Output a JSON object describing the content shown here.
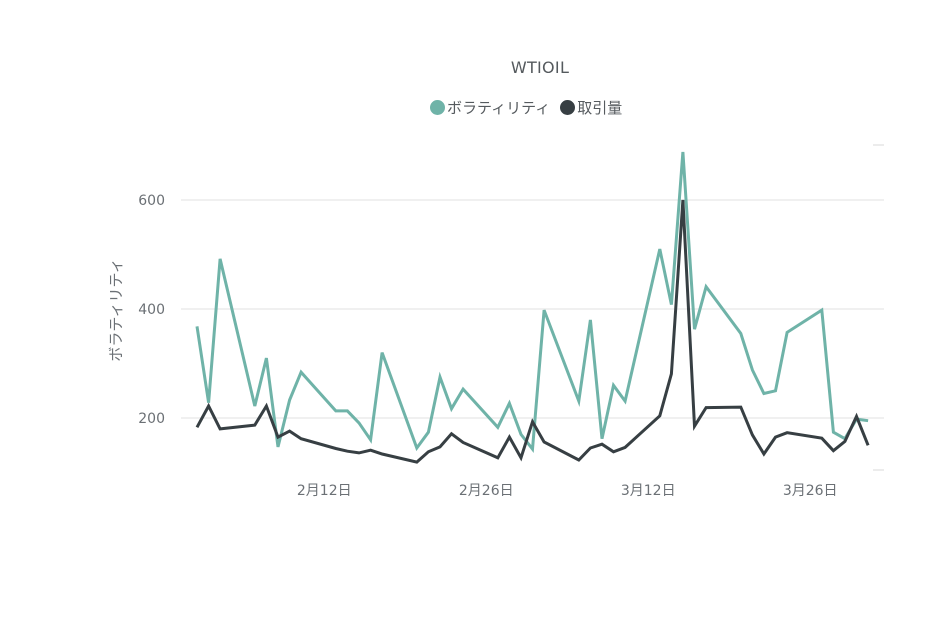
{
  "chart_data": {
    "type": "line",
    "title": "WTIOIL",
    "xlabel": "",
    "ylabel": "ボラティリティ",
    "ylim": [
      100,
      700
    ],
    "y_ticks": [
      200,
      400,
      600
    ],
    "x_ticks": [
      {
        "day": 11,
        "label": "2月12日"
      },
      {
        "day": 25,
        "label": "2月26日"
      },
      {
        "day": 39,
        "label": "3月12日"
      },
      {
        "day": 53,
        "label": "3月26日"
      }
    ],
    "grid": true,
    "legend_position": "top",
    "secondary_axis": {
      "labels_visible": false
    },
    "series": [
      {
        "name": "ボラティリティ",
        "color": "#6fb3a8",
        "axis": "primary",
        "x_day": [
          0,
          1,
          2,
          5,
          6,
          7,
          8,
          9,
          12,
          13,
          14,
          15,
          16,
          19,
          20,
          21,
          22,
          23,
          26,
          27,
          28,
          29,
          30,
          33,
          34,
          35,
          36,
          37,
          40,
          41,
          42,
          43,
          44,
          47,
          48,
          49,
          50,
          51,
          54,
          55,
          56,
          57,
          58
        ],
        "values": [
          368,
          228,
          492,
          222,
          310,
          147,
          233,
          284,
          213,
          213,
          191,
          160,
          320,
          145,
          174,
          275,
          217,
          253,
          183,
          227,
          170,
          143,
          398,
          231,
          380,
          162,
          260,
          231,
          510,
          408,
          688,
          363,
          441,
          355,
          288,
          245,
          250,
          357,
          398,
          174,
          162,
          198,
          195
        ]
      },
      {
        "name": "取引量",
        "color": "#373f43",
        "axis": "secondary",
        "x_day": [
          0,
          1,
          2,
          5,
          6,
          7,
          8,
          9,
          12,
          13,
          14,
          15,
          16,
          19,
          20,
          21,
          22,
          23,
          26,
          27,
          28,
          29,
          30,
          33,
          34,
          35,
          36,
          37,
          40,
          41,
          42,
          43,
          44,
          47,
          48,
          49,
          50,
          51,
          54,
          55,
          56,
          57,
          58
        ],
        "values": [
          183,
          222,
          180,
          187,
          222,
          165,
          176,
          162,
          144,
          139,
          136,
          141,
          134,
          119,
          138,
          147,
          171,
          155,
          127,
          165,
          127,
          193,
          156,
          123,
          145,
          152,
          138,
          146,
          204,
          281,
          600,
          185,
          219,
          220,
          169,
          134,
          165,
          173,
          163,
          140,
          157,
          203,
          150
        ]
      }
    ],
    "legend": [
      {
        "label": "ボラティリティ",
        "color": "#6fb3a8"
      },
      {
        "label": "取引量",
        "color": "#373f43"
      }
    ]
  }
}
